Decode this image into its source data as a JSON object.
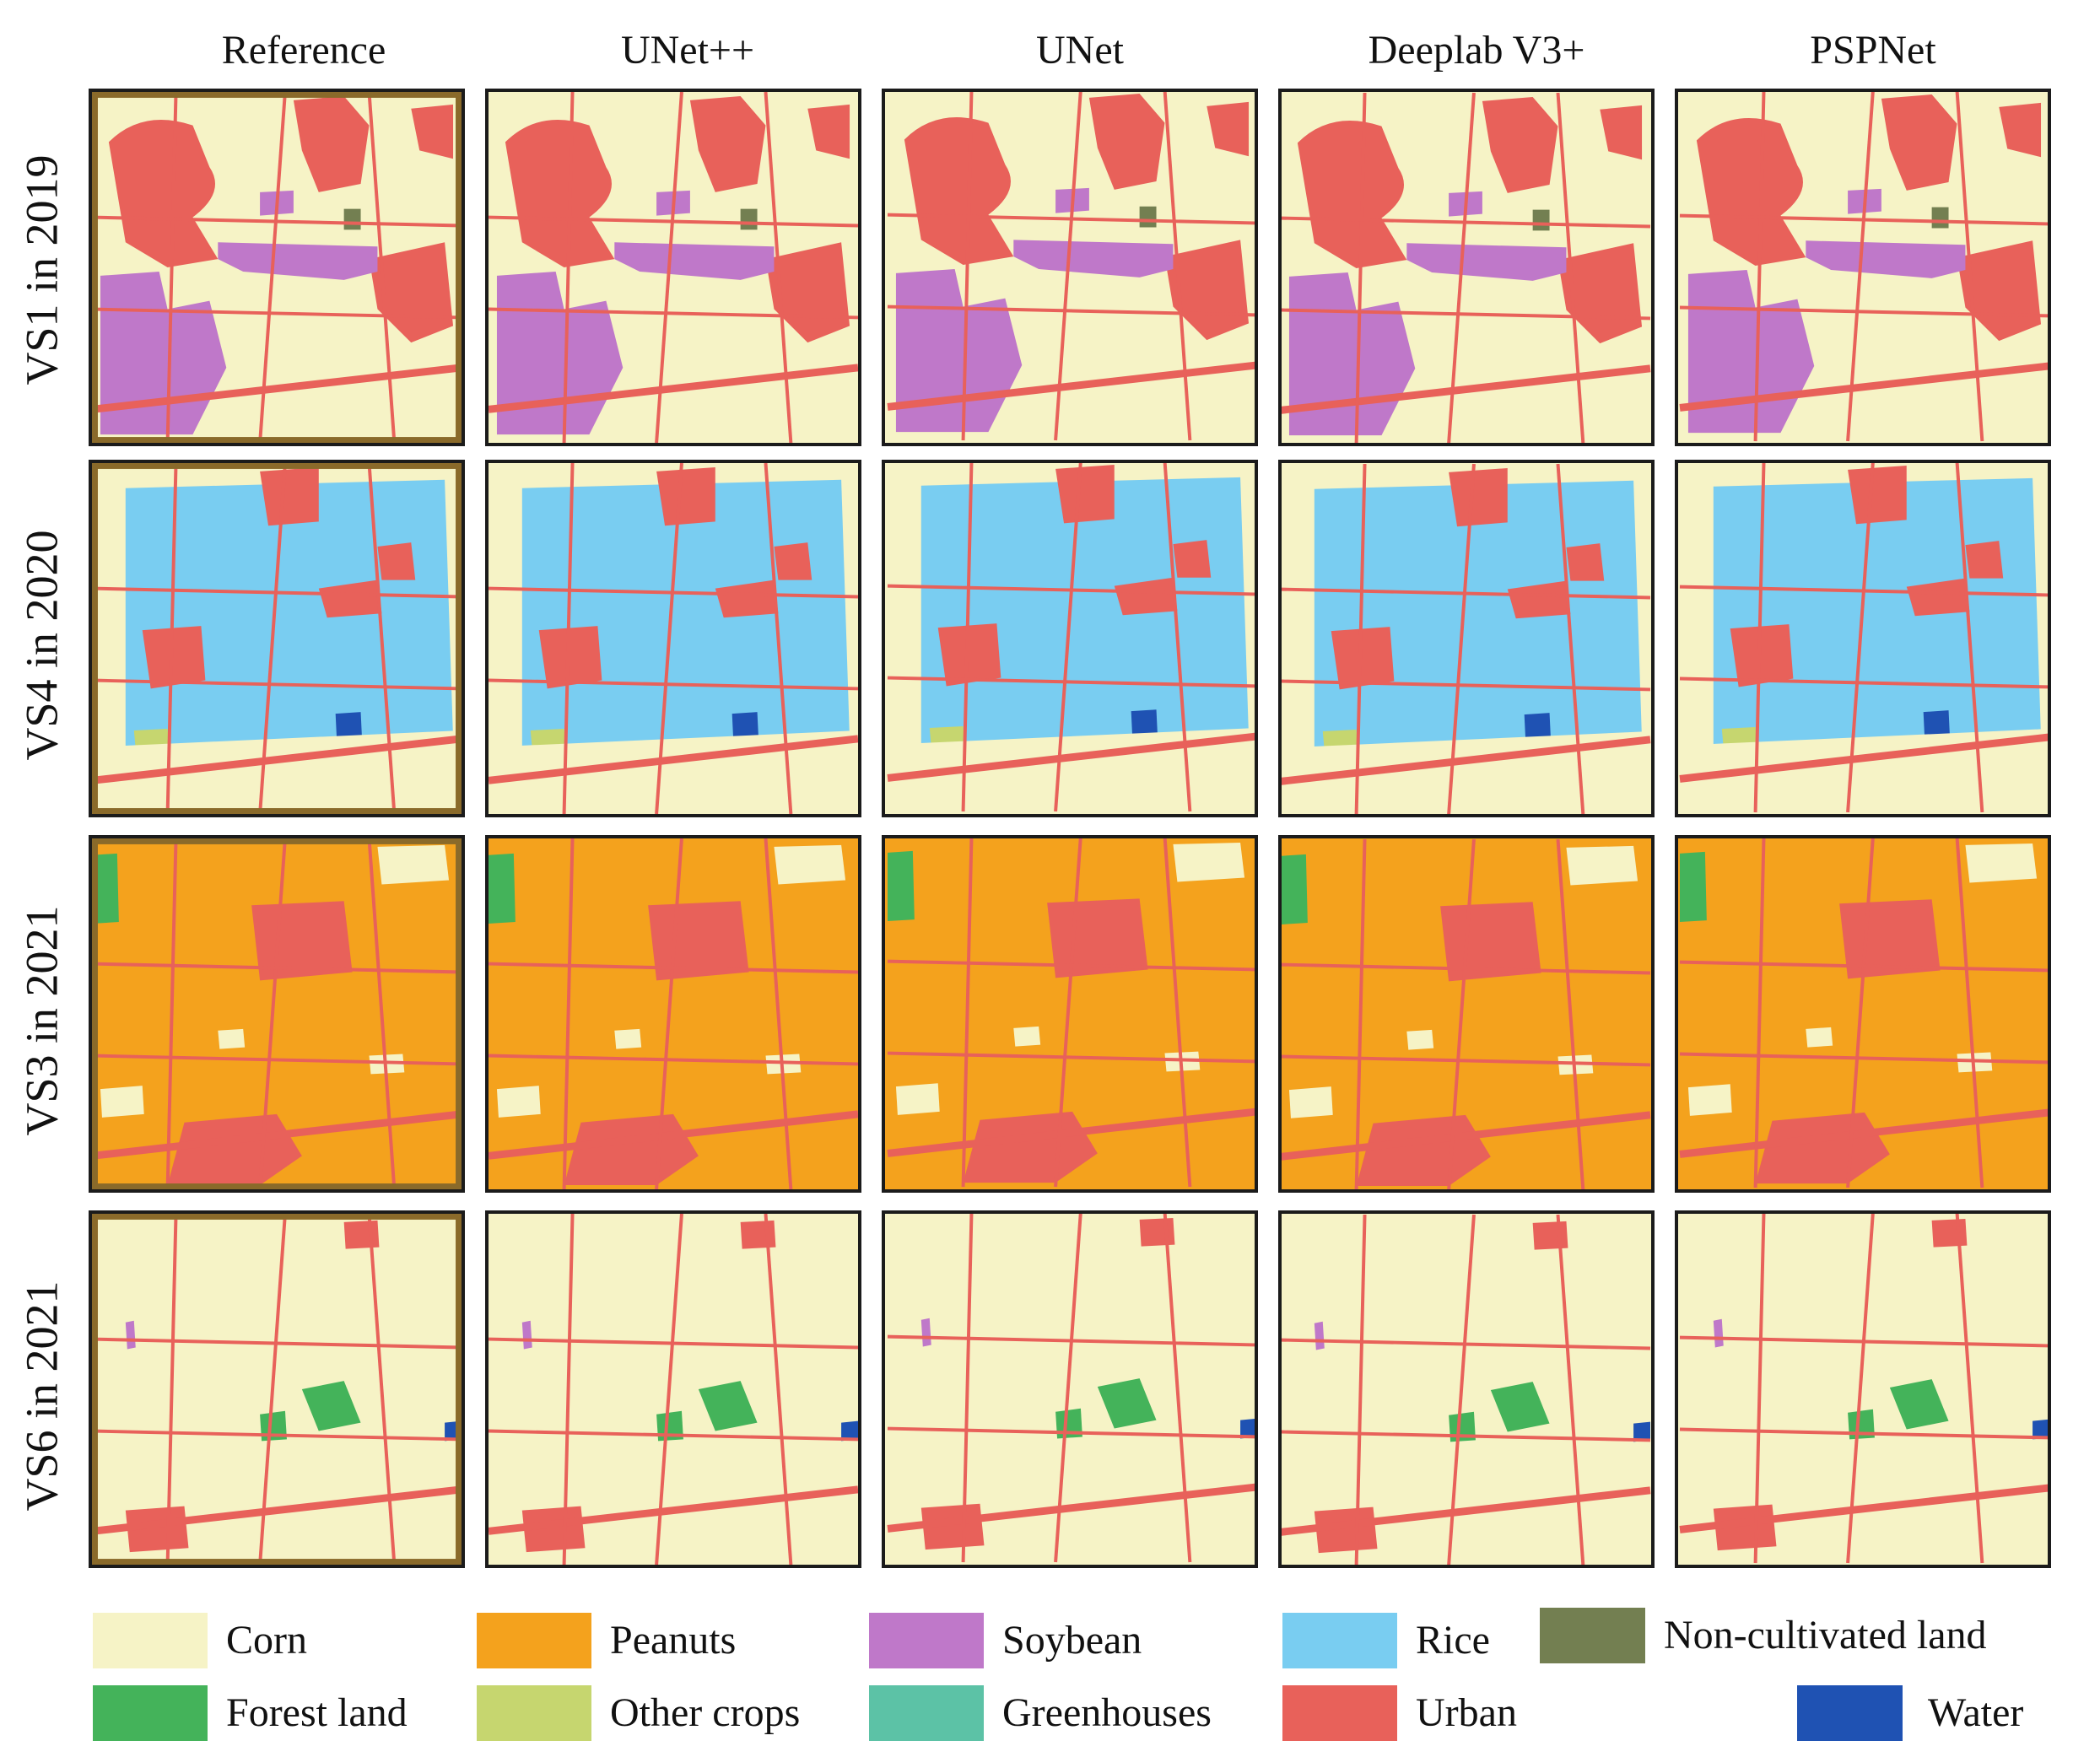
{
  "columns": [
    "Reference",
    "UNet++",
    "UNet",
    "Deeplab V3+",
    "PSPNet"
  ],
  "rows": [
    "VS1 in 2019",
    "VS4 in 2020",
    "VS3 in 2021",
    "VS6 in 2021"
  ],
  "row_themes": [
    "corn",
    "rice",
    "peanuts",
    "corn"
  ],
  "colors": {
    "corn": "#f6f3c6",
    "peanuts": "#f4a21d",
    "soybean": "#bf78c9",
    "rice": "#79cdf1",
    "noncultivated": "#737f51",
    "forest": "#44b35a",
    "othercrops": "#c6d66f",
    "greenhouses": "#5cc2a6",
    "urban": "#e8615a",
    "water": "#1f52b3",
    "border_image": "#8a6a2a"
  },
  "legend": [
    {
      "key": "corn",
      "label": "Corn"
    },
    {
      "key": "peanuts",
      "label": "Peanuts"
    },
    {
      "key": "soybean",
      "label": "Soybean"
    },
    {
      "key": "rice",
      "label": "Rice"
    },
    {
      "key": "noncultivated",
      "label": "Non-cultivated land"
    },
    {
      "key": "forest",
      "label": "Forest land"
    },
    {
      "key": "othercrops",
      "label": "Other crops"
    },
    {
      "key": "greenhouses",
      "label": "Greenhouses"
    },
    {
      "key": "urban",
      "label": "Urban"
    },
    {
      "key": "water",
      "label": "Water"
    }
  ]
}
